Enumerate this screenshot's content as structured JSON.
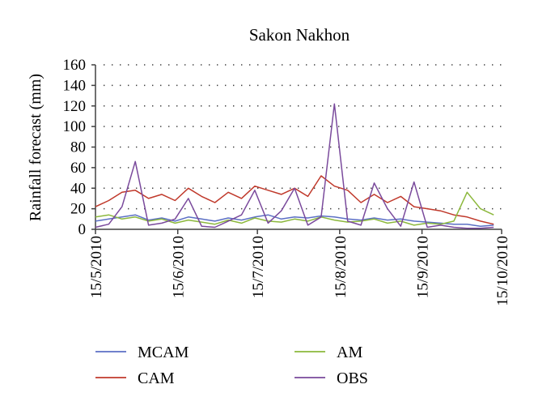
{
  "chart_data": {
    "type": "line",
    "title": "Sakon Nakhon",
    "ylabel": "Rainfall forecast (mm)",
    "xlabel": "",
    "ylim": [
      0,
      160
    ],
    "yticks": [
      "0",
      "20",
      "40",
      "60",
      "80",
      "100",
      "120",
      "140",
      "160"
    ],
    "xlim": [
      "2010-05-15",
      "2010-10-15"
    ],
    "xticks": [
      "15/5/2010",
      "15/6/2010",
      "15/7/2010",
      "15/8/2010",
      "15/9/2010",
      "15/10/2010"
    ],
    "grid": "horizontal dotted",
    "legend_position": "bottom",
    "x": [
      "2010-05-15",
      "2010-05-20",
      "2010-05-25",
      "2010-05-30",
      "2010-06-04",
      "2010-06-09",
      "2010-06-14",
      "2010-06-19",
      "2010-06-24",
      "2010-06-29",
      "2010-07-04",
      "2010-07-09",
      "2010-07-14",
      "2010-07-19",
      "2010-07-24",
      "2010-07-29",
      "2010-08-03",
      "2010-08-08",
      "2010-08-13",
      "2010-08-18",
      "2010-08-23",
      "2010-08-28",
      "2010-09-02",
      "2010-09-07",
      "2010-09-12",
      "2010-09-17",
      "2010-09-22",
      "2010-09-27",
      "2010-10-02",
      "2010-10-07",
      "2010-10-12"
    ],
    "series": [
      {
        "name": "MCAM",
        "color": "#5b6fc4",
        "values": [
          8,
          10,
          12,
          14,
          9,
          11,
          8,
          12,
          10,
          8,
          11,
          9,
          12,
          14,
          10,
          12,
          11,
          13,
          12,
          10,
          9,
          11,
          9,
          10,
          8,
          7,
          6,
          5,
          5,
          3,
          4
        ]
      },
      {
        "name": "CAM",
        "color": "#c0392b",
        "values": [
          22,
          28,
          36,
          38,
          30,
          34,
          28,
          40,
          32,
          26,
          36,
          30,
          42,
          38,
          34,
          40,
          32,
          52,
          42,
          38,
          26,
          34,
          26,
          32,
          22,
          20,
          18,
          14,
          12,
          8,
          5
        ]
      },
      {
        "name": "AM",
        "color": "#8cb83c",
        "values": [
          12,
          14,
          10,
          12,
          8,
          10,
          6,
          9,
          7,
          5,
          9,
          6,
          11,
          8,
          7,
          10,
          8,
          12,
          9,
          7,
          8,
          10,
          6,
          8,
          4,
          6,
          5,
          8,
          36,
          20,
          14
        ]
      },
      {
        "name": "OBS",
        "color": "#7a4a9c",
        "values": [
          2,
          5,
          22,
          66,
          4,
          6,
          10,
          30,
          3,
          2,
          8,
          14,
          38,
          6,
          18,
          40,
          4,
          12,
          122,
          8,
          4,
          45,
          20,
          3,
          46,
          2,
          4,
          2,
          1,
          1,
          2
        ]
      }
    ]
  }
}
